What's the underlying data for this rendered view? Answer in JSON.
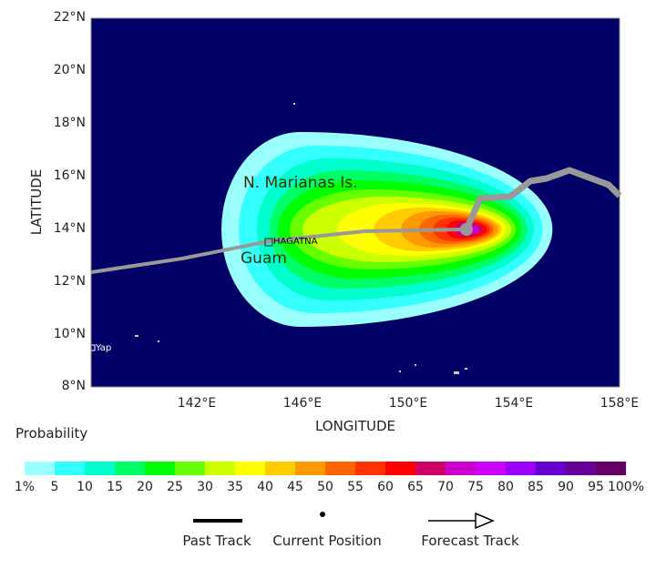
{
  "map": {
    "xlabel": "LONGITUDE",
    "ylabel": "LATITUDE",
    "lon_range": [
      138,
      158
    ],
    "lat_range": [
      8,
      22
    ],
    "x_ticks": [
      "142°E",
      "146°E",
      "150°E",
      "154°E",
      "158°E"
    ],
    "y_ticks": [
      "22°N",
      "20°N",
      "18°N",
      "16°N",
      "14°N",
      "12°N",
      "10°N",
      "8°N"
    ],
    "ocean_color": "#000066",
    "labels": {
      "marianas": "N. Marianas Is.",
      "guam": "Guam",
      "hagatna": "HAGATNA",
      "yap": "Yap"
    },
    "current_position": {
      "lon": 152.2,
      "lat": 14.0
    },
    "track_color": "#999999"
  },
  "legend": {
    "title": "Probability",
    "colors": [
      "#99ffff",
      "#33ffff",
      "#00ffcc",
      "#00ff66",
      "#00ff00",
      "#66ff00",
      "#ccff00",
      "#ffff00",
      "#ffcc00",
      "#ff9900",
      "#ff6600",
      "#ff3300",
      "#ff0000",
      "#cc0066",
      "#cc00cc",
      "#cc00ff",
      "#9900ff",
      "#6600cc",
      "#660099",
      "#660066"
    ],
    "labels": [
      "1%",
      "5",
      "10",
      "15",
      "20",
      "25",
      "30",
      "35",
      "40",
      "45",
      "50",
      "55",
      "60",
      "65",
      "70",
      "75",
      "80",
      "85",
      "90",
      "95",
      "100%"
    ],
    "past_track": "Past Track",
    "current_position": "Current Position",
    "forecast_track": "Forecast Track"
  }
}
